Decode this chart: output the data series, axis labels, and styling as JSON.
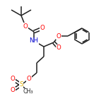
{
  "background_color": "#ffffff",
  "bond_color": "#202020",
  "atom_colors": {
    "O": "#ff0000",
    "N": "#0000cd",
    "S": "#ddaa00",
    "C": "#202020"
  },
  "font_size": 6.2,
  "line_width": 1.1,
  "figsize": [
    1.5,
    1.5
  ],
  "dpi": 100
}
